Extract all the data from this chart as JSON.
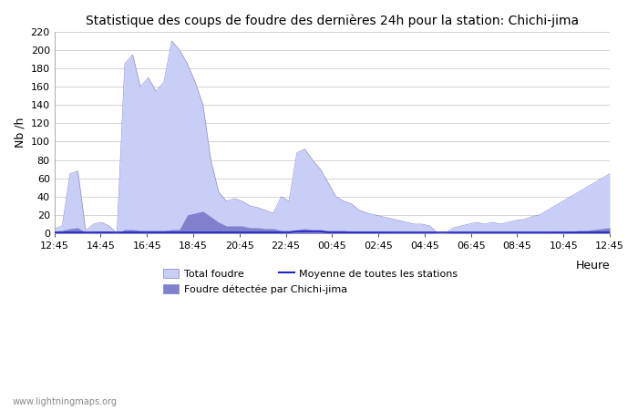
{
  "title": "Statistique des coups de foudre des dernières 24h pour la station: Chichi-jima",
  "ylabel": "Nb /h",
  "xlabel": "Heure",
  "watermark": "www.lightningmaps.org",
  "ylim": [
    0,
    220
  ],
  "yticks": [
    0,
    20,
    40,
    60,
    80,
    100,
    120,
    140,
    160,
    180,
    200,
    220
  ],
  "xtick_labels": [
    "12:45",
    "14:45",
    "16:45",
    "18:45",
    "20:45",
    "22:45",
    "00:45",
    "02:45",
    "04:45",
    "06:45",
    "08:45",
    "10:45",
    "12:45"
  ],
  "color_total": "#c8cef5",
  "color_local": "#8080cc",
  "color_mean": "#2222cc",
  "legend_total": "Total foudre",
  "legend_local": "Foudre détectée par Chichi-jima",
  "legend_mean": "Moyenne de toutes les stations",
  "total_foudre": [
    5,
    8,
    65,
    68,
    3,
    10,
    12,
    8,
    0,
    185,
    195,
    160,
    170,
    155,
    165,
    210,
    200,
    185,
    165,
    140,
    80,
    45,
    35,
    38,
    35,
    30,
    28,
    25,
    22,
    40,
    35,
    88,
    92,
    80,
    70,
    55,
    40,
    35,
    32,
    25,
    22,
    20,
    18,
    16,
    14,
    12,
    10,
    10,
    8,
    0,
    0,
    6,
    8,
    10,
    12,
    10,
    12,
    10,
    12,
    14,
    15,
    18,
    20,
    25,
    30,
    35,
    40,
    45,
    50,
    55,
    60,
    65
  ],
  "local_foudre": [
    2,
    3,
    5,
    6,
    1,
    2,
    2,
    2,
    0,
    4,
    4,
    3,
    3,
    3,
    3,
    4,
    4,
    20,
    22,
    24,
    18,
    12,
    8,
    8,
    8,
    6,
    6,
    5,
    5,
    3,
    3,
    4,
    5,
    4,
    4,
    3,
    3,
    3,
    2,
    2,
    2,
    2,
    2,
    1,
    1,
    1,
    1,
    1,
    1,
    0,
    0,
    1,
    1,
    1,
    1,
    1,
    1,
    1,
    1,
    1,
    1,
    1,
    1,
    1,
    2,
    2,
    2,
    3,
    3,
    4,
    5,
    6
  ],
  "mean_foudre": [
    1,
    1,
    1,
    1,
    1,
    1,
    1,
    1,
    1,
    1,
    1,
    1,
    1,
    1,
    1,
    1,
    1,
    1,
    1,
    1,
    1,
    1,
    1,
    1,
    1,
    1,
    1,
    1,
    1,
    1,
    1,
    2,
    2,
    2,
    2,
    1,
    1,
    1,
    1,
    1,
    1,
    1,
    1,
    1,
    1,
    1,
    1,
    1,
    1,
    1,
    1,
    1,
    1,
    1,
    1,
    1,
    1,
    1,
    1,
    1,
    1,
    1,
    1,
    1,
    1,
    1,
    1,
    1,
    1,
    1,
    1,
    1
  ]
}
